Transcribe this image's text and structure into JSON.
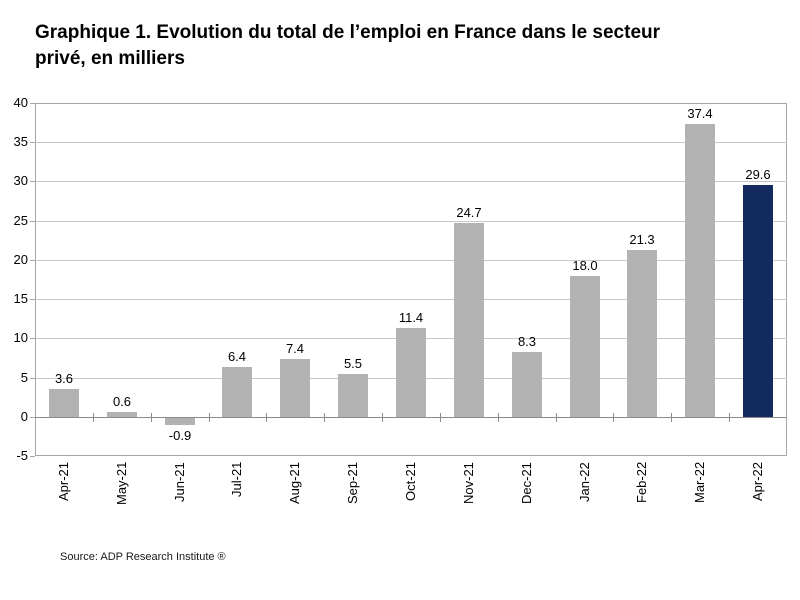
{
  "title": "Graphique 1. Evolution du total de l’emploi en France dans le secteur privé, en milliers",
  "source": "Source: ADP Research Institute ®",
  "chart_data": {
    "type": "bar",
    "title": "Graphique 1. Evolution du total de l’emploi en France dans le secteur privé, en milliers",
    "categories": [
      "Apr-21",
      "May-21",
      "Jun-21",
      "Jul-21",
      "Aug-21",
      "Sep-21",
      "Oct-21",
      "Nov-21",
      "Dec-21",
      "Jan-22",
      "Feb-22",
      "Mar-22",
      "Apr-22"
    ],
    "values": [
      3.6,
      0.6,
      -0.9,
      6.4,
      7.4,
      5.5,
      11.4,
      24.7,
      8.3,
      18.0,
      21.3,
      37.4,
      29.6
    ],
    "value_labels": [
      "3.6",
      "0.6",
      "-0.9",
      "6.4",
      "7.4",
      "5.5",
      "11.4",
      "24.7",
      "8.3",
      "18.0",
      "21.3",
      "37.4",
      "29.6"
    ],
    "xlabel": "",
    "ylabel": "",
    "ylim": [
      -5,
      40
    ],
    "ytick_step": 5,
    "grid": true,
    "legend": "none",
    "highlight_index": 12,
    "colors": {
      "bar_default": "#b2b2b2",
      "bar_highlight": "#122a5e",
      "gridline": "#c6c6c6",
      "plot_border": "#a6a6a6",
      "zero_axis": "#8c8c8c",
      "label_text": "#000000"
    },
    "source": "Source: ADP Research Institute ®"
  }
}
